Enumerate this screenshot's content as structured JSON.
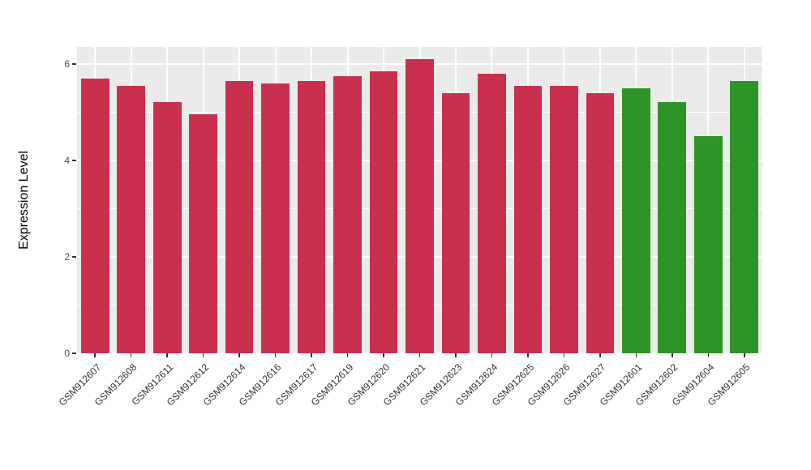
{
  "chart_data": {
    "type": "bar",
    "title": "",
    "xlabel": "",
    "ylabel": "Expression Level",
    "categories": [
      "GSM912607",
      "GSM912608",
      "GSM912611",
      "GSM912612",
      "GSM912614",
      "GSM912616",
      "GSM912617",
      "GSM912619",
      "GSM912620",
      "GSM912621",
      "GSM912623",
      "GSM912624",
      "GSM912625",
      "GSM912626",
      "GSM912627",
      "GSM912601",
      "GSM912602",
      "GSM912604",
      "GSM912605"
    ],
    "values": [
      5.7,
      5.55,
      5.2,
      4.95,
      5.65,
      5.6,
      5.65,
      5.75,
      5.85,
      6.1,
      5.4,
      5.8,
      5.55,
      5.55,
      5.4,
      5.5,
      5.2,
      4.5,
      5.65
    ],
    "bar_colors": [
      "#C8304E",
      "#C8304E",
      "#C8304E",
      "#C8304E",
      "#C8304E",
      "#C8304E",
      "#C8304E",
      "#C8304E",
      "#C8304E",
      "#C8304E",
      "#C8304E",
      "#C8304E",
      "#C8304E",
      "#C8304E",
      "#C8304E",
      "#2E9428",
      "#2E9428",
      "#2E9428",
      "#2E9428"
    ],
    "ylim": [
      0,
      6.35
    ],
    "yticks": [
      0,
      2,
      4,
      6
    ],
    "ytick_labels": [
      "0",
      "2",
      "4",
      "6"
    ],
    "minor_gridlines": [
      1,
      3,
      5
    ],
    "grid": true,
    "legend": "none",
    "panel_background": "#EBEBEB",
    "grid_color": "#FFFFFF",
    "axis_text_color": "#4d4d4d"
  }
}
